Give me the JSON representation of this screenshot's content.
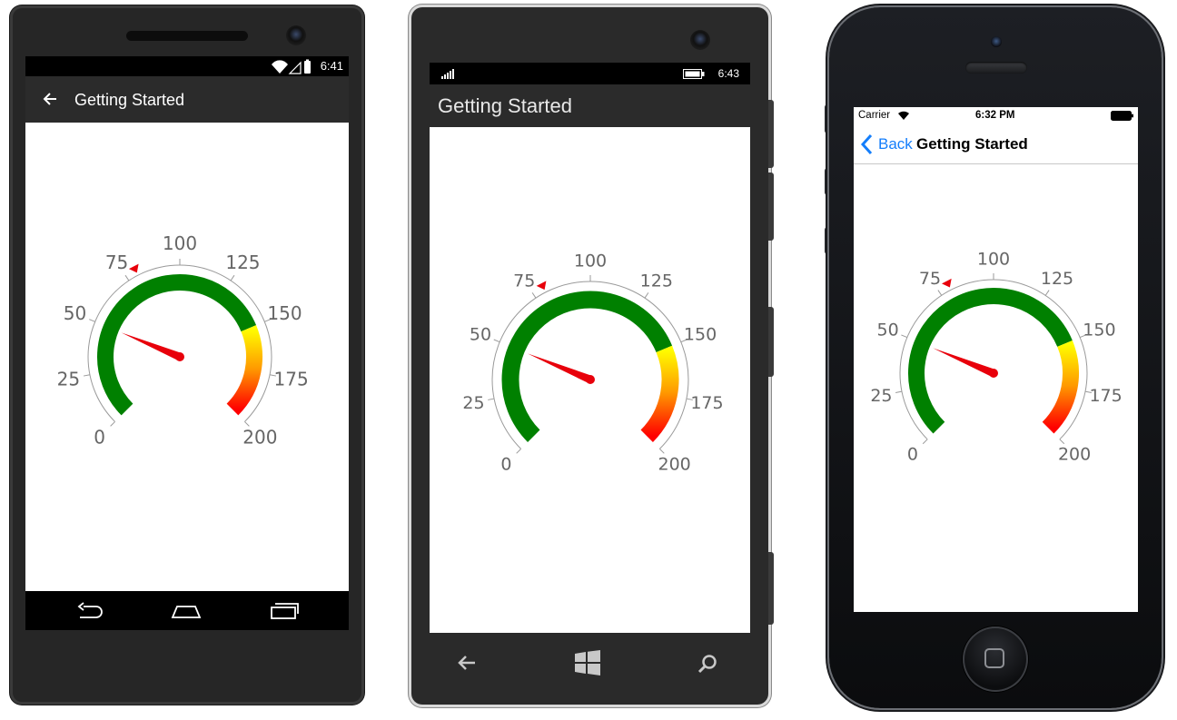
{
  "title": "Getting Started",
  "android": {
    "status_time": "6:41",
    "app_title": "Getting Started",
    "icons": [
      "back-arrow-icon",
      "wifi-icon",
      "cellular-icon",
      "battery-icon",
      "nav-back-icon",
      "nav-home-icon",
      "nav-recents-icon"
    ]
  },
  "windows": {
    "status_time": "6:43",
    "app_title": "Getting Started",
    "icons": [
      "signal-icon",
      "battery-icon",
      "back-arrow-icon",
      "windows-logo-icon",
      "search-icon"
    ]
  },
  "ios": {
    "carrier": "Carrier",
    "status_time": "6:32 PM",
    "back_label": "Back",
    "nav_title": "Getting Started",
    "icons": [
      "wifi-icon",
      "battery-icon",
      "back-chevron-icon",
      "home-button-icon"
    ]
  },
  "gauge": {
    "min": 0,
    "max": 200,
    "interval": 25,
    "tick_labels": [
      "0",
      "25",
      "50",
      "75",
      "100",
      "125",
      "150",
      "175",
      "200"
    ],
    "start_angle_deg": 135,
    "sweep_angle_deg": 270,
    "needle_value": 50,
    "marker_value": 80,
    "ranges": [
      {
        "start": 0,
        "end": 150,
        "color": "#008000"
      },
      {
        "start": 150,
        "end": 200,
        "gradient": [
          "#ffff00",
          "#ff9900",
          "#ff0000"
        ]
      }
    ],
    "needle_color": "#e8000b",
    "marker_color": "#e8000b"
  }
}
